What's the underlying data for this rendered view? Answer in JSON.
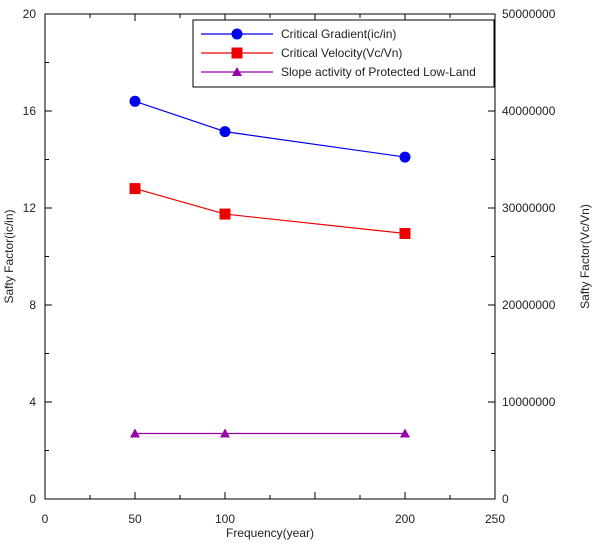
{
  "chart_data": {
    "type": "line",
    "xlabel": "Frequency(year)",
    "ylabel_left": "Safty Factor(ic/in)",
    "ylabel_right": "Safty Factor(Vc/Vn)",
    "xlim": [
      0,
      250
    ],
    "ylim_left": [
      0,
      20
    ],
    "ylim_right": [
      0,
      50000000
    ],
    "x_ticks": [
      0,
      50,
      100,
      150,
      200,
      250
    ],
    "x_tick_labels": [
      "0",
      "50",
      "100",
      "",
      "200",
      "250"
    ],
    "y_left_ticks": [
      0,
      4,
      8,
      12,
      16,
      20
    ],
    "y_right_ticks": [
      0,
      10000000,
      20000000,
      30000000,
      40000000,
      50000000
    ],
    "grid": false,
    "legend_position": "top-right",
    "series": [
      {
        "name": "Critical Gradient(ic/in)",
        "x": [
          50,
          100,
          200
        ],
        "values": [
          16.4,
          15.15,
          14.1
        ],
        "color": "#0000ee",
        "marker": "circle"
      },
      {
        "name": "Critical Velocity(Vc/Vn)",
        "x": [
          50,
          100,
          200
        ],
        "values": [
          12.8,
          11.75,
          10.95
        ],
        "color": "#ee0000",
        "marker": "square"
      },
      {
        "name": "Slope activity of Protected Low-Land",
        "x": [
          50,
          100,
          200
        ],
        "values": [
          2.7,
          2.7,
          2.7
        ],
        "color": "#9900aa",
        "marker": "triangle"
      }
    ]
  }
}
